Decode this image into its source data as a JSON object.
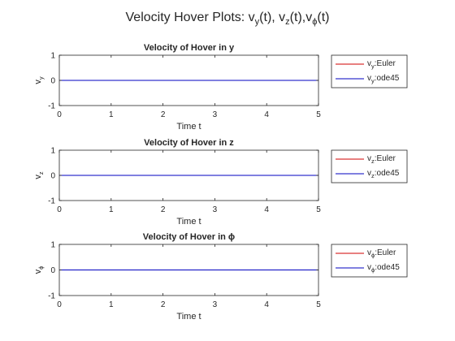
{
  "figure": {
    "title": "Velocity Hover Plots: ",
    "title_parts": [
      {
        "base": "v",
        "sub": "y",
        "tail": "(t), "
      },
      {
        "base": "v",
        "sub": "z",
        "tail": "(t),"
      },
      {
        "base": "v",
        "sub": "ϕ",
        "tail": "(t)"
      }
    ]
  },
  "colors": {
    "euler": "#d00000",
    "ode45": "#0000c0",
    "axes": "#262626",
    "legend_border": "#262626"
  },
  "chart_data": [
    {
      "type": "line",
      "title": "Velocity of Hover in y",
      "xlabel": "Time t",
      "ylabel": {
        "base": "v",
        "sub": "y"
      },
      "xlim": [
        0,
        5
      ],
      "ylim": [
        -1,
        1
      ],
      "xticks": [
        0,
        1,
        2,
        3,
        4,
        5
      ],
      "yticks": [
        -1,
        0,
        1
      ],
      "grid": false,
      "legend_position": "outside-right",
      "series": [
        {
          "name": {
            "base": "v",
            "sub": "y",
            "tail": ":Euler"
          },
          "color": "#d00000",
          "x": [
            0,
            5
          ],
          "y": [
            0,
            0
          ]
        },
        {
          "name": {
            "base": "v",
            "sub": "y",
            "tail": ":ode45"
          },
          "color": "#0000c0",
          "x": [
            0,
            5
          ],
          "y": [
            0,
            0
          ]
        }
      ]
    },
    {
      "type": "line",
      "title": "Velocity of Hover in z",
      "xlabel": "Time t",
      "ylabel": {
        "base": "v",
        "sub": "z"
      },
      "xlim": [
        0,
        5
      ],
      "ylim": [
        -1,
        1
      ],
      "xticks": [
        0,
        1,
        2,
        3,
        4,
        5
      ],
      "yticks": [
        -1,
        0,
        1
      ],
      "grid": false,
      "legend_position": "outside-right",
      "series": [
        {
          "name": {
            "base": "v",
            "sub": "z",
            "tail": ":Euler"
          },
          "color": "#d00000",
          "x": [
            0,
            5
          ],
          "y": [
            0,
            0
          ]
        },
        {
          "name": {
            "base": "v",
            "sub": "z",
            "tail": ":ode45"
          },
          "color": "#0000c0",
          "x": [
            0,
            5
          ],
          "y": [
            0,
            0
          ]
        }
      ]
    },
    {
      "type": "line",
      "title": "Velocity of Hover in ϕ",
      "xlabel": "Time t",
      "ylabel": {
        "base": "v",
        "sub": "ϕ"
      },
      "xlim": [
        0,
        5
      ],
      "ylim": [
        -1,
        1
      ],
      "xticks": [
        0,
        1,
        2,
        3,
        4,
        5
      ],
      "yticks": [
        -1,
        0,
        1
      ],
      "grid": false,
      "legend_position": "outside-right",
      "series": [
        {
          "name": {
            "base": "v",
            "sub": "ϕ",
            "tail": ":Euler"
          },
          "color": "#d00000",
          "x": [
            0,
            5
          ],
          "y": [
            0,
            0
          ]
        },
        {
          "name": {
            "base": "v",
            "sub": "ϕ",
            "tail": ":ode45"
          },
          "color": "#0000c0",
          "x": [
            0,
            5
          ],
          "y": [
            0,
            0
          ]
        }
      ]
    }
  ]
}
